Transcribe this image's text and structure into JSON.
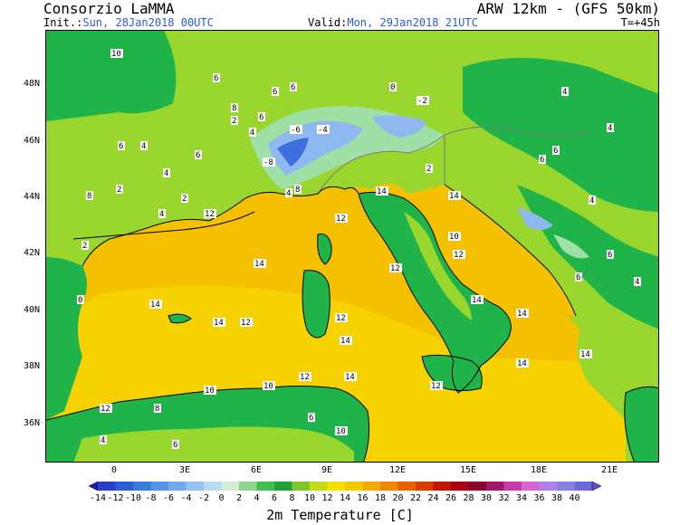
{
  "header": {
    "title": "Consorzio LaMMA",
    "model": "ARW 12km - (GFS 50km)",
    "init_label": "Init.:",
    "init_value": "Sun, 28Jan2018 00UTC",
    "valid_label": "Valid:",
    "valid_value": "Mon, 29Jan2018 21UTC",
    "step": "T=+45h"
  },
  "map": {
    "variable": "2m Temperature [C]",
    "lat_labels": [
      "48N",
      "46N",
      "44N",
      "42N",
      "40N",
      "38N",
      "36N"
    ],
    "lon_labels": [
      "0",
      "3E",
      "6E",
      "9E",
      "12E",
      "15E",
      "18E",
      "21E"
    ],
    "colors": {
      "sea": "#f5c000",
      "sea_warm": "#f5d200",
      "lowland": "#9ad72e",
      "hills": "#1fb34a",
      "mountain": "#9ee0a6",
      "cold": "#8fb8f0",
      "very_cold": "#3f6fdc",
      "border": "#7a7a7a"
    },
    "contour_labels": [
      "10",
      "6",
      "8",
      "6",
      "6",
      "6",
      "4",
      "8",
      "2",
      "6",
      "4",
      "4",
      "6",
      "2",
      "0",
      "-2",
      "-8",
      "-6",
      "-4",
      "4",
      "6",
      "4",
      "2",
      "6",
      "2",
      "4",
      "12",
      "12",
      "14",
      "12",
      "12",
      "14",
      "14",
      "12",
      "14",
      "12",
      "14",
      "14",
      "14",
      "14",
      "14",
      "12",
      "12",
      "14",
      "14",
      "10",
      "10",
      "8",
      "6",
      "6",
      "10",
      "12",
      "4",
      "2",
      "0",
      "6",
      "4",
      "6",
      "4",
      "8",
      "10",
      "4"
    ]
  },
  "colorbar": {
    "labels": [
      "-14",
      "-12",
      "-10",
      "-8",
      "-6",
      "-4",
      "-2",
      "0",
      "2",
      "4",
      "6",
      "8",
      "10",
      "12",
      "14",
      "16",
      "18",
      "20",
      "22",
      "24",
      "26",
      "28",
      "30",
      "32",
      "34",
      "36",
      "38",
      "40"
    ],
    "colors": [
      "#1e1ea0",
      "#2a3cc8",
      "#2e5ed6",
      "#3a7be0",
      "#5592e8",
      "#72a8ee",
      "#95c2f2",
      "#b8d8f4",
      "#d6ebd8",
      "#8fd48f",
      "#3fbf4f",
      "#1fa23a",
      "#7dc82a",
      "#c2dc1c",
      "#f2e000",
      "#f5c800",
      "#f2a900",
      "#ee8800",
      "#e86200",
      "#d83a00",
      "#c21600",
      "#a8000e",
      "#8c0030",
      "#a0186a",
      "#c83aa8",
      "#d866d4",
      "#b080e8",
      "#8880e0",
      "#6e68d8",
      "#5a50c8"
    ],
    "title": "2m Temperature [C]"
  }
}
